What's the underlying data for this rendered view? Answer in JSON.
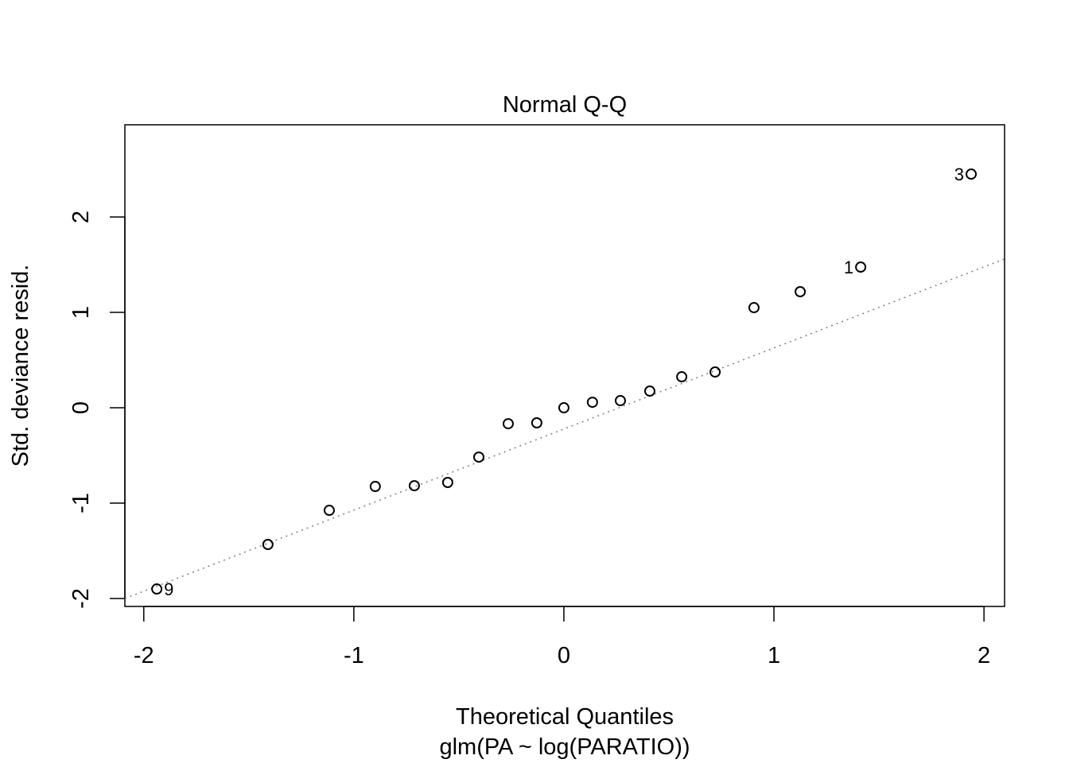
{
  "chart_data": {
    "type": "scatter",
    "title": "Normal Q-Q",
    "xlabel": "Theoretical Quantiles",
    "sublabel": "glm(PA ~ log(PARATIO))",
    "ylabel": "Std. deviance resid.",
    "xlim": [
      -2.09,
      2.098
    ],
    "ylim": [
      -2.083,
      2.967
    ],
    "xticks": [
      -2,
      -1,
      0,
      1,
      2
    ],
    "yticks": [
      -2,
      -1,
      0,
      1,
      2
    ],
    "grid": false,
    "points": [
      {
        "x": -1.938,
        "y": -1.9,
        "label": "9"
      },
      {
        "x": -1.409,
        "y": -1.433
      },
      {
        "x": -1.117,
        "y": -1.075
      },
      {
        "x": -0.898,
        "y": -0.825
      },
      {
        "x": -0.712,
        "y": -0.817
      },
      {
        "x": -0.553,
        "y": -0.783
      },
      {
        "x": -0.405,
        "y": -0.517
      },
      {
        "x": -0.265,
        "y": -0.167
      },
      {
        "x": -0.129,
        "y": -0.158
      },
      {
        "x": 0.0,
        "y": 0.0
      },
      {
        "x": 0.136,
        "y": 0.058
      },
      {
        "x": 0.269,
        "y": 0.075
      },
      {
        "x": 0.409,
        "y": 0.175
      },
      {
        "x": 0.561,
        "y": 0.325
      },
      {
        "x": 0.72,
        "y": 0.375
      },
      {
        "x": 0.905,
        "y": 1.05
      },
      {
        "x": 1.125,
        "y": 1.217
      },
      {
        "x": 1.413,
        "y": 1.475,
        "label": "1"
      },
      {
        "x": 1.939,
        "y": 2.45,
        "label": "3"
      }
    ],
    "reference_line": {
      "intercept": -0.223,
      "slope": 0.85,
      "style": "dotted",
      "color": "#808080"
    }
  }
}
